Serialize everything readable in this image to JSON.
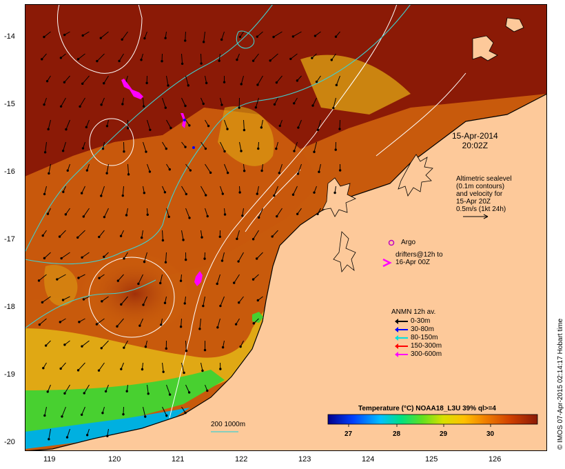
{
  "map": {
    "date_line1": "15-Apr-2014",
    "date_line2": "20:02Z",
    "altimetry_note": [
      "Altimetric sealevel",
      "(0.1m contours)",
      "and velocity for",
      "15-Apr 20Z",
      "0.5m/s (1kt 24h)"
    ],
    "argo_label": "Argo",
    "drifters_label": [
      "drifters@12h to",
      "16-Apr 00Z"
    ],
    "anmn_title": "ANMN 12h av.",
    "anmn_legend": [
      {
        "label": "0-30m",
        "color": "#000000"
      },
      {
        "label": "30-80m",
        "color": "#0000ff"
      },
      {
        "label": "80-150m",
        "color": "#00e0e0"
      },
      {
        "label": "150-300m",
        "color": "#ff0000"
      },
      {
        "label": "300-600m",
        "color": "#ff00ff"
      }
    ],
    "isobath_label": "200  1000m",
    "colorbar_title": "Temperature (°C) NOAA18_L3U 39% ql>=4",
    "colorbar_ticks": [
      "27",
      "28",
      "29",
      "30"
    ],
    "credit": "© IMOS 07-Apr-2015 02:14:17 Hobart time",
    "lon_labels": [
      "119",
      "120",
      "121",
      "122",
      "123",
      "124",
      "125",
      "126"
    ],
    "lat_labels": [
      "-14",
      "-15",
      "-16",
      "-17",
      "-18",
      "-19",
      "-20"
    ],
    "colors": {
      "land": "#fdc99a",
      "warm": "#8b1a06",
      "mid": "#d8700e",
      "cool": "#e8c41a",
      "cold": "#48d830",
      "contour": "#ffffff",
      "isobath": "#40d0d0"
    }
  }
}
